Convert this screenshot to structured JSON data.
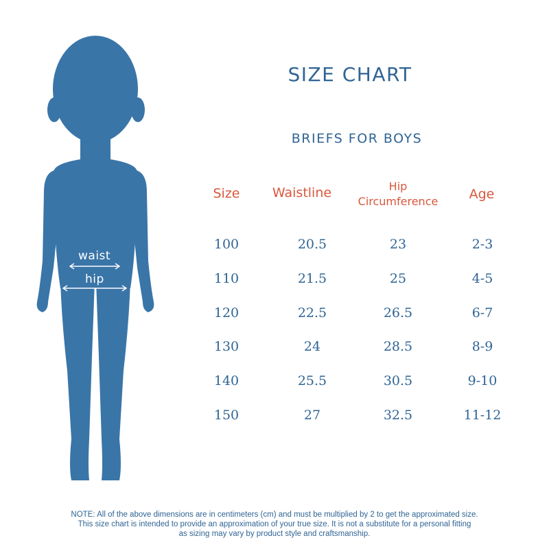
{
  "title": "SIZE CHART",
  "subtitle": "BRIEFS FOR BOYS",
  "figure": {
    "waist_label": "waist",
    "hip_label": "hip"
  },
  "table": {
    "headers": {
      "size": "Size",
      "waistline": "Waistline",
      "hip_line1": "Hip",
      "hip_line2": "Circumference",
      "age": "Age"
    },
    "rows": [
      {
        "size": "100",
        "waistline": "20.5",
        "hip": "23",
        "age": "2-3"
      },
      {
        "size": "110",
        "waistline": "21.5",
        "hip": "25",
        "age": "4-5"
      },
      {
        "size": "120",
        "waistline": "22.5",
        "hip": "26.5",
        "age": "6-7"
      },
      {
        "size": "130",
        "waistline": "24",
        "hip": "28.5",
        "age": "8-9"
      },
      {
        "size": "140",
        "waistline": "25.5",
        "hip": "30.5",
        "age": "9-10"
      },
      {
        "size": "150",
        "waistline": "27",
        "hip": "32.5",
        "age": "11-12"
      }
    ]
  },
  "note": {
    "line1": "NOTE: All of the above dimensions are in centimeters (cm) and must be multiplied by 2 to get the approximated size.",
    "line2": "This size chart is intended to provide an approximation of your true size. It is not a substitute for a personal fitting",
    "line3": "as sizing may vary by product style and craftsmanship."
  },
  "colors": {
    "primary": "#2f6494",
    "figure": "#3a75a8",
    "header_accent": "#d9573c",
    "background": "#ffffff"
  }
}
